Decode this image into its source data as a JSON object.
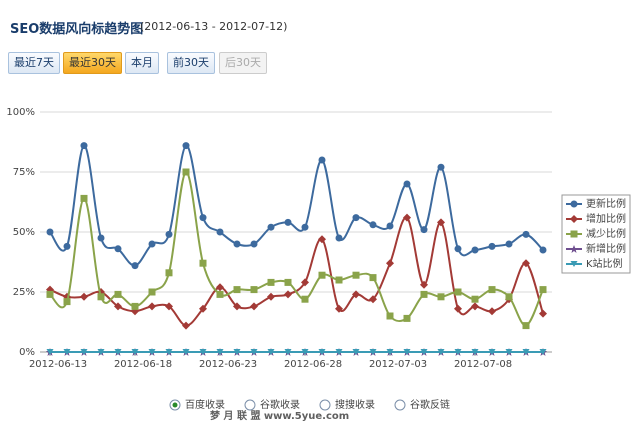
{
  "header": {
    "title": "SEO数据风向标趋势图",
    "subtitle": "(2012-06-13 - 2012-07-12)"
  },
  "buttons": [
    "最近7天",
    "最近30天",
    "本月",
    "前30天",
    "后30天"
  ],
  "radios": [
    "百度收录",
    "谷歌收录",
    "搜搜收录",
    "谷歌反链"
  ],
  "watermark": "梦 月 联 盟 www.5yue.com",
  "chart_data": {
    "type": "line",
    "categories": [
      "2012-06-13",
      null,
      null,
      null,
      null,
      "2012-06-18",
      null,
      null,
      null,
      null,
      "2012-06-23",
      null,
      null,
      null,
      null,
      "2012-06-28",
      null,
      null,
      null,
      null,
      "2012-07-03",
      null,
      null,
      null,
      null,
      "2012-07-08",
      null,
      null,
      null,
      null
    ],
    "ylim": [
      0,
      100
    ],
    "yticks": [
      {
        "value": 0,
        "label": "0%"
      },
      {
        "value": 25,
        "label": "25%"
      },
      {
        "value": 50,
        "label": "50%"
      },
      {
        "value": 75,
        "label": "75%"
      },
      {
        "value": 100,
        "label": "100%"
      }
    ],
    "grid": true,
    "legend": "right",
    "series": [
      {
        "name": "更新比例",
        "color": "#3d6a9e",
        "marker": "circle",
        "values": [
          50,
          44,
          86,
          47.5,
          43,
          36,
          45,
          49,
          86,
          56,
          50,
          45,
          45,
          52,
          54,
          52,
          80,
          47.5,
          56,
          53,
          52.5,
          70,
          51,
          77,
          43,
          42.5,
          44,
          45,
          49,
          42.5
        ]
      },
      {
        "name": "增加比例",
        "color": "#a33a36",
        "marker": "diamond",
        "values": [
          26,
          23,
          23,
          25,
          19,
          17,
          19,
          19,
          11,
          18,
          27,
          19,
          19,
          23,
          24,
          29,
          47,
          18,
          24,
          22,
          37,
          56,
          28,
          54,
          18,
          19,
          17,
          22,
          37,
          16
        ]
      },
      {
        "name": "减少比例",
        "color": "#8aa34a",
        "marker": "square",
        "values": [
          24,
          21,
          64,
          23,
          24,
          19,
          25,
          33,
          75,
          37,
          24,
          26,
          26,
          29,
          29,
          22,
          32,
          30,
          32,
          31,
          15,
          14,
          24,
          23,
          25,
          22,
          26,
          23,
          11,
          26
        ]
      },
      {
        "name": "新增比例",
        "color": "#6f4f8f",
        "marker": "star",
        "values": [
          0,
          0,
          0,
          0,
          0,
          0,
          0,
          0,
          0,
          0,
          0,
          0,
          0,
          0,
          0,
          0,
          0,
          0,
          0,
          0,
          0,
          0,
          0,
          0,
          0,
          0,
          0,
          0,
          0,
          0
        ]
      },
      {
        "name": "K站比例",
        "color": "#3a9bb5",
        "marker": "triangle",
        "values": [
          0,
          0,
          0,
          0,
          0,
          0,
          0,
          0,
          0,
          0,
          0,
          0,
          0,
          0,
          0,
          0,
          0,
          0,
          0,
          0,
          0,
          0,
          0,
          0,
          0,
          0,
          0,
          0,
          0,
          0
        ]
      }
    ]
  }
}
